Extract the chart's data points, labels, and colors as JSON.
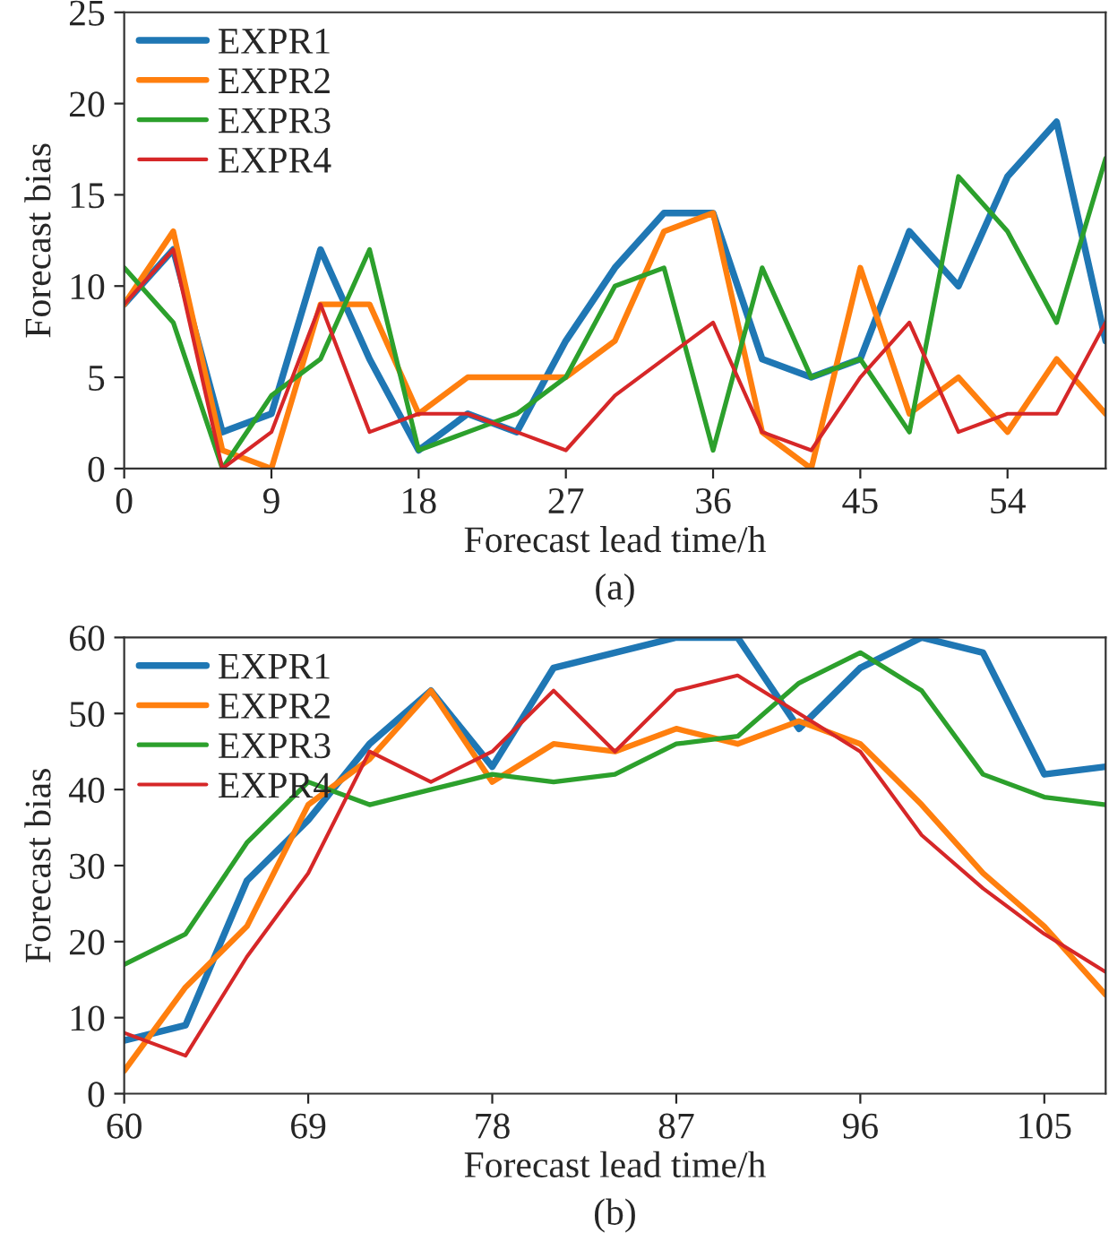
{
  "chart_data": [
    {
      "type": "line",
      "xlabel": "Forecast lead time/h",
      "ylabel": "Forecast bias",
      "annotations": [
        "(a)"
      ],
      "x": [
        0,
        3,
        6,
        9,
        12,
        15,
        18,
        21,
        24,
        27,
        30,
        33,
        36,
        39,
        42,
        45,
        48,
        51,
        54,
        57,
        60
      ],
      "series": [
        {
          "name": "EXPR1",
          "color": "#1f77b4",
          "values": [
            9,
            12,
            2,
            3,
            12,
            6,
            1,
            3,
            2,
            7,
            11,
            14,
            14,
            6,
            5,
            6,
            13,
            10,
            16,
            19,
            7
          ]
        },
        {
          "name": "EXPR2",
          "color": "#ff7f0e",
          "values": [
            9,
            13,
            1,
            0,
            9,
            9,
            3,
            5,
            5,
            5,
            7,
            13,
            14,
            2,
            0,
            11,
            3,
            5,
            2,
            6,
            3
          ]
        },
        {
          "name": "EXPR3",
          "color": "#2ca02c",
          "values": [
            11,
            8,
            0,
            4,
            6,
            12,
            1,
            2,
            3,
            5,
            10,
            11,
            1,
            11,
            5,
            6,
            2,
            16,
            13,
            8,
            17
          ]
        },
        {
          "name": "EXPR4",
          "color": "#d62728",
          "values": [
            9,
            12,
            0,
            2,
            9,
            2,
            3,
            3,
            2,
            1,
            4,
            6,
            8,
            2,
            1,
            5,
            8,
            2,
            3,
            3,
            8
          ]
        }
      ],
      "xlim": [
        0,
        60
      ],
      "xticks": [
        0,
        9,
        18,
        27,
        36,
        45,
        54
      ],
      "ylim": [
        0,
        25
      ],
      "yticks": [
        0,
        5,
        10,
        15,
        20,
        25
      ],
      "legend": "top left",
      "grid": false
    },
    {
      "type": "line",
      "xlabel": "Forecast lead time/h",
      "ylabel": "Forecast bias",
      "annotations": [
        "(b)"
      ],
      "x": [
        60,
        63,
        66,
        69,
        72,
        75,
        78,
        81,
        84,
        87,
        90,
        93,
        96,
        99,
        102,
        105,
        108
      ],
      "series": [
        {
          "name": "EXPR1",
          "color": "#1f77b4",
          "values": [
            7,
            9,
            28,
            36,
            46,
            53,
            43,
            56,
            58,
            60,
            60,
            48,
            56,
            60,
            58,
            42,
            43
          ]
        },
        {
          "name": "EXPR2",
          "color": "#ff7f0e",
          "values": [
            3,
            14,
            22,
            38,
            44,
            53,
            41,
            46,
            45,
            48,
            46,
            49,
            46,
            38,
            29,
            22,
            13
          ]
        },
        {
          "name": "EXPR3",
          "color": "#2ca02c",
          "values": [
            17,
            21,
            33,
            41,
            38,
            40,
            42,
            41,
            42,
            46,
            47,
            54,
            58,
            53,
            42,
            39,
            38
          ]
        },
        {
          "name": "EXPR4",
          "color": "#d62728",
          "values": [
            8,
            5,
            18,
            29,
            45,
            41,
            45,
            53,
            45,
            53,
            55,
            50,
            45,
            34,
            27,
            21,
            16
          ]
        }
      ],
      "xlim": [
        60,
        108
      ],
      "xticks": [
        60,
        69,
        78,
        87,
        96,
        105
      ],
      "ylim": [
        0,
        60
      ],
      "yticks": [
        0,
        10,
        20,
        30,
        40,
        50,
        60
      ],
      "legend": "top left",
      "grid": false
    }
  ]
}
